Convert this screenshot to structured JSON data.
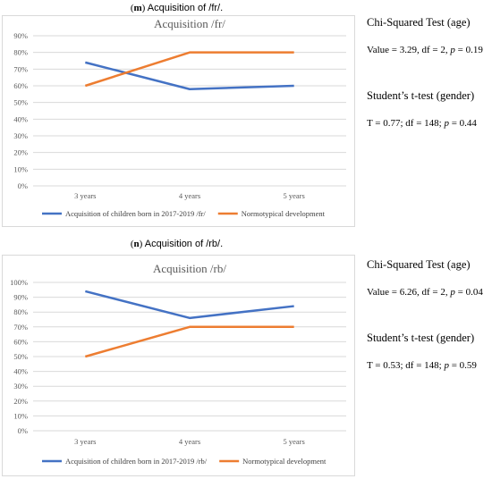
{
  "panels": [
    {
      "caption_label": "m",
      "caption_text": " Acquisition of /fr/.",
      "stats": {
        "chi_title": "Chi-Squared Test (age)",
        "chi_a": "Value = 3.29, df = 2, ",
        "chi_p_letter": "p",
        "chi_b": " = 0.19",
        "t_title": "Student’s t-test (gender)",
        "t_a": "T = 0.77; df = 148; ",
        "t_p_letter": "p",
        "t_b": " = 0.44"
      }
    },
    {
      "caption_label": "n",
      "caption_text": " Acquisition of /rb/.",
      "stats": {
        "chi_title": "Chi-Squared Test (age)",
        "chi_a": "Value = 6.26, df = 2, ",
        "chi_p_letter": "p",
        "chi_b": " = 0.04",
        "t_title": "Student’s t-test (gender)",
        "t_a": "T = 0.53; df = 148; ",
        "t_p_letter": "p",
        "t_b": " = 0.59"
      }
    }
  ],
  "chart_data": [
    {
      "type": "line",
      "title": "Acquisition /fr/",
      "categories": [
        "3 years",
        "4 years",
        "5 years"
      ],
      "ylim": [
        0,
        90
      ],
      "yticks": [
        "0%",
        "10%",
        "20%",
        "30%",
        "40%",
        "50%",
        "60%",
        "70%",
        "80%",
        "90%"
      ],
      "grid": true,
      "legend": "bottom",
      "series": [
        {
          "name": "Acquisition of children born in 2017-2019 /fr/",
          "color": "#4472c4",
          "values": [
            74,
            58,
            60
          ]
        },
        {
          "name": "Normotypical development",
          "color": "#ed7d31",
          "values": [
            60,
            80,
            80
          ]
        }
      ]
    },
    {
      "type": "line",
      "title": "Acquisition /rb/",
      "categories": [
        "3 years",
        "4 years",
        "5 years"
      ],
      "ylim": [
        0,
        100
      ],
      "yticks": [
        "0%",
        "10%",
        "20%",
        "30%",
        "40%",
        "50%",
        "60%",
        "70%",
        "80%",
        "90%",
        "100%"
      ],
      "grid": true,
      "legend": "bottom",
      "series": [
        {
          "name": "Acquisition of children born in 2017-2019 /rb/",
          "color": "#4472c4",
          "values": [
            94,
            76,
            84
          ]
        },
        {
          "name": "Normotypical development",
          "color": "#ed7d31",
          "values": [
            50,
            70,
            70
          ]
        }
      ]
    }
  ]
}
